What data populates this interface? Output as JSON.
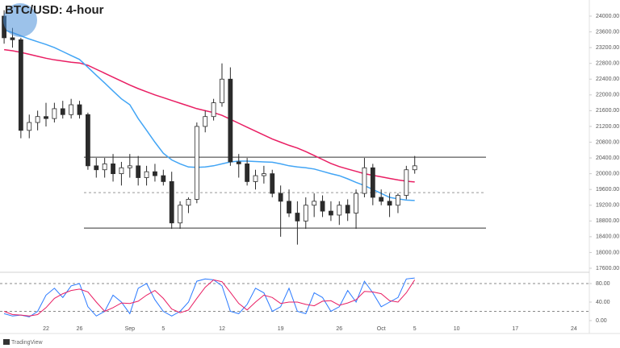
{
  "title": "BTC/USD: 4-hour",
  "watermark": "TradingView",
  "chart_data": [
    {
      "type": "candlestick",
      "categories": [
        null,
        null,
        null,
        null,
        null,
        "22",
        null,
        null,
        null,
        "26",
        null,
        null,
        null,
        null,
        null,
        "Sep",
        null,
        null,
        null,
        "5",
        null,
        null,
        null,
        null,
        null,
        null,
        "12",
        null,
        null,
        null,
        null,
        null,
        null,
        "19",
        null,
        null,
        null,
        null,
        null,
        null,
        "26",
        null,
        null,
        null,
        null,
        "Oct",
        null,
        null,
        null,
        "5",
        null,
        null,
        null,
        null,
        "10",
        null,
        null,
        null,
        null,
        null,
        null,
        "17",
        null,
        null,
        null,
        null,
        null,
        null,
        "24",
        null
      ],
      "open": [
        24000,
        23450,
        23400,
        21100,
        21300,
        21450,
        21400,
        21650,
        21500,
        21750,
        21500,
        20200,
        20100,
        20250,
        20000,
        20150,
        20200,
        19900,
        20050,
        19950,
        19800,
        18750,
        19200,
        19350,
        21200,
        21450,
        21800,
        22400,
        20300,
        20250,
        19800,
        19950,
        20000,
        19500,
        19300,
        19000,
        18800,
        19200,
        19300,
        19050,
        18950,
        19200,
        19000,
        19500,
        20150,
        19400,
        19300,
        19200,
        19450,
        20100,
        null,
        null,
        null,
        null,
        null,
        null,
        null,
        null,
        null,
        null,
        null,
        null,
        null,
        null,
        null,
        null,
        null,
        null,
        null,
        null
      ],
      "high": [
        24150,
        23700,
        23450,
        21500,
        21600,
        21800,
        21800,
        21850,
        21900,
        21850,
        21550,
        20400,
        20400,
        20500,
        20300,
        20500,
        20450,
        20200,
        20250,
        20100,
        20050,
        19300,
        19400,
        21300,
        21600,
        21900,
        22800,
        22700,
        20500,
        20400,
        20100,
        20200,
        20100,
        19700,
        19600,
        19300,
        19400,
        19500,
        19450,
        19300,
        19300,
        19350,
        19600,
        20400,
        20250,
        19600,
        19500,
        19500,
        20200,
        20450,
        null,
        null,
        null,
        null,
        null,
        null,
        null,
        null,
        null,
        null,
        null,
        null,
        null,
        null,
        null,
        null,
        null,
        null,
        null,
        null
      ],
      "low": [
        23300,
        23200,
        20900,
        20900,
        21100,
        21200,
        21300,
        21400,
        21400,
        21400,
        20100,
        19900,
        19900,
        19800,
        19700,
        19900,
        19700,
        19700,
        19800,
        19700,
        18600,
        18600,
        19000,
        19250,
        21050,
        21350,
        21700,
        20200,
        19900,
        19700,
        19600,
        19750,
        19400,
        18400,
        18900,
        18200,
        18600,
        18900,
        18900,
        18800,
        18700,
        18800,
        18600,
        19400,
        19200,
        19200,
        18900,
        19000,
        19350,
        20000,
        null,
        null,
        null,
        null,
        null,
        null,
        null,
        null,
        null,
        null,
        null,
        null,
        null,
        null,
        null,
        null,
        null,
        null,
        null,
        null
      ],
      "close": [
        23450,
        23400,
        21100,
        21300,
        21450,
        21400,
        21650,
        21500,
        21750,
        21500,
        20200,
        20100,
        20250,
        20000,
        20150,
        20200,
        19900,
        20050,
        19950,
        19800,
        18750,
        19200,
        19350,
        21200,
        21450,
        21800,
        22400,
        20300,
        20250,
        19800,
        19950,
        20000,
        19500,
        19300,
        19000,
        18800,
        19200,
        19300,
        19050,
        18950,
        19200,
        19000,
        19500,
        20150,
        19400,
        19300,
        19200,
        19450,
        20100,
        20200,
        null,
        null,
        null,
        null,
        null,
        null,
        null,
        null,
        null,
        null,
        null,
        null,
        null,
        null,
        null,
        null,
        null,
        null,
        null,
        null
      ],
      "up_color": "#ffffff",
      "down_color": "#2b2b2b",
      "wick_color": "#2b2b2b",
      "series": [
        {
          "color": "#e91e63",
          "values": [
            23150,
            23120,
            23080,
            23030,
            22980,
            22930,
            22890,
            22860,
            22830,
            22810,
            22750,
            22650,
            22550,
            22450,
            22350,
            22250,
            22160,
            22080,
            22000,
            21930,
            21860,
            21790,
            21720,
            21650,
            21600,
            21550,
            21480,
            21380,
            21280,
            21180,
            21080,
            20980,
            20880,
            20800,
            20720,
            20650,
            20560,
            20460,
            20360,
            20260,
            20180,
            20120,
            20060,
            20000,
            19960,
            19920,
            19880,
            19840,
            19810,
            19790,
            null,
            null,
            null,
            null,
            null,
            null,
            null,
            null,
            null,
            null,
            null,
            null,
            null,
            null,
            null,
            null,
            null,
            null,
            null,
            null
          ]
        },
        {
          "color": "#42a5f5",
          "values": [
            23650,
            23580,
            23500,
            23420,
            23350,
            23280,
            23200,
            23100,
            23000,
            22900,
            22700,
            22500,
            22300,
            22100,
            21900,
            21750,
            21400,
            21100,
            20800,
            20520,
            20350,
            20250,
            20170,
            20160,
            20170,
            20200,
            20250,
            20300,
            20320,
            20320,
            20310,
            20300,
            20290,
            20250,
            20200,
            20170,
            20150,
            20120,
            20060,
            20000,
            19950,
            19870,
            19780,
            19700,
            19600,
            19500,
            19400,
            19360,
            19330,
            19320,
            null,
            null,
            null,
            null,
            null,
            null,
            null,
            null,
            null,
            null,
            null,
            null,
            null,
            null,
            null,
            null,
            null,
            null,
            null,
            null
          ]
        }
      ],
      "levels": [
        {
          "value": 20420,
          "dashed": false,
          "color": "#333333"
        },
        {
          "value": 19520,
          "dashed": true,
          "color": "#999999"
        },
        {
          "value": 18620,
          "dashed": false,
          "color": "#333333"
        }
      ],
      "ylim": [
        17600,
        24000
      ],
      "yticks": [
        {
          "value": 17600,
          "label": "17600.00"
        },
        {
          "value": 18000,
          "label": "18000.00"
        },
        {
          "value": 18400,
          "label": "18400.00"
        },
        {
          "value": 18800,
          "label": "18800.00"
        },
        {
          "value": 19200,
          "label": "19200.00"
        },
        {
          "value": 19600,
          "label": "19600.00"
        },
        {
          "value": 20000,
          "label": "20000.00"
        },
        {
          "value": 20400,
          "label": "20400.00"
        },
        {
          "value": 20800,
          "label": "20800.00"
        },
        {
          "value": 21200,
          "label": "21200.00"
        },
        {
          "value": 21600,
          "label": "21600.00"
        },
        {
          "value": 22000,
          "label": "22000.00"
        },
        {
          "value": 22400,
          "label": "22400.00"
        },
        {
          "value": 22800,
          "label": "22800.00"
        },
        {
          "value": 23200,
          "label": "23200.00"
        },
        {
          "value": 23600,
          "label": "23600.00"
        },
        {
          "value": 24000,
          "label": "24000.00"
        }
      ]
    },
    {
      "type": "line",
      "series": [
        {
          "color": "#2979ff",
          "values": [
            15,
            10,
            12,
            8,
            20,
            55,
            70,
            50,
            75,
            80,
            30,
            10,
            20,
            55,
            40,
            15,
            70,
            80,
            45,
            20,
            10,
            20,
            40,
            85,
            90,
            88,
            75,
            20,
            15,
            35,
            70,
            60,
            20,
            30,
            70,
            20,
            15,
            60,
            50,
            20,
            30,
            65,
            40,
            85,
            60,
            30,
            40,
            50,
            90,
            92,
            null,
            null,
            null,
            null,
            null,
            null,
            null,
            null,
            null,
            null,
            null,
            null,
            null,
            null,
            null,
            null,
            null,
            null,
            null,
            null
          ]
        },
        {
          "color": "#e91e63",
          "values": [
            20,
            13,
            12,
            10,
            13,
            28,
            48,
            58,
            65,
            68,
            62,
            40,
            20,
            28,
            38,
            37,
            42,
            55,
            65,
            48,
            25,
            17,
            23,
            48,
            72,
            88,
            84,
            61,
            37,
            23,
            40,
            55,
            50,
            37,
            40,
            40,
            35,
            32,
            42,
            43,
            33,
            38,
            45,
            63,
            62,
            58,
            43,
            40,
            60,
            88,
            null,
            null,
            null,
            null,
            null,
            null,
            null,
            null,
            null,
            null,
            null,
            null,
            null,
            null,
            null,
            null,
            null,
            null,
            null,
            null
          ]
        }
      ],
      "levels": [
        {
          "value": 80,
          "dashed": true,
          "color": "#888888"
        },
        {
          "value": 20,
          "dashed": true,
          "color": "#888888"
        }
      ],
      "ylim": [
        0,
        100
      ],
      "yticks": [
        {
          "value": 0,
          "label": "0.00"
        },
        {
          "value": 40,
          "label": "40.00"
        },
        {
          "value": 80,
          "label": "80.00"
        }
      ]
    }
  ]
}
